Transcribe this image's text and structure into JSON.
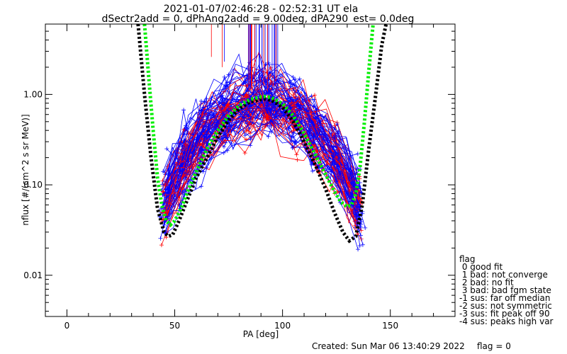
{
  "header": {
    "title_line1": "2021-01-07/02:46:28 - 02:52:31 UT ela",
    "title_line2": "dSectr2add = 0, dPhAng2add = 9.00deg, dPA290_est=    0.0deg"
  },
  "footer": {
    "created": "Created: Sun Mar 06 13:40:29 2022",
    "flag": "flag = 0"
  },
  "legend": {
    "title": "flag",
    "items": [
      " 0 good fit",
      " 1 bad: not converge",
      " 2 bad: no fit",
      " 3 bad: bad fgm state",
      "-1 sus: far off median",
      "-2 sus: not symmetric",
      "-3 sus: fit peak off 90",
      "-4 sus: peaks high var"
    ]
  },
  "colors": {
    "red": "#ff0000",
    "blue": "#0000ff",
    "green": "#00ee00",
    "black": "#000000"
  },
  "chart_data": {
    "type": "line",
    "xlabel": "PA [deg]",
    "ylabel": "nflux [#/(cm^2 s sr MeV)]",
    "xlim": [
      -10,
      180
    ],
    "ylim": [
      0.0035,
      6.0
    ],
    "ylog": true,
    "x_ticks": [
      0,
      50,
      100,
      150
    ],
    "x_tick_labels": [
      "0",
      "50",
      "100",
      "150"
    ],
    "y_ticks": [
      0.01,
      0.1,
      1.0
    ],
    "y_tick_labels": [
      "0.01",
      "0.10",
      "1.00"
    ],
    "series": [
      {
        "color": "#000000",
        "style": "dotted-thick",
        "x": [
          33,
          36,
          39,
          42,
          45,
          47,
          49,
          52,
          56,
          60,
          65,
          70,
          75,
          80,
          85,
          90,
          92,
          95,
          100,
          105,
          110,
          115,
          120,
          124,
          128,
          131,
          134,
          137,
          140,
          143,
          146,
          148
        ],
        "y": [
          6.0,
          1.0,
          0.2,
          0.055,
          0.03,
          0.027,
          0.028,
          0.04,
          0.07,
          0.12,
          0.2,
          0.34,
          0.52,
          0.7,
          0.83,
          0.88,
          0.89,
          0.86,
          0.72,
          0.5,
          0.3,
          0.17,
          0.09,
          0.05,
          0.03,
          0.024,
          0.027,
          0.06,
          0.25,
          0.9,
          3.5,
          6.0
        ]
      },
      {
        "color": "#00ee00",
        "style": "dotted-thick",
        "x": [
          36,
          38,
          40,
          42,
          44,
          46,
          48,
          50,
          53,
          56,
          60,
          65,
          70,
          75,
          80,
          85,
          90,
          92,
          95,
          100,
          105,
          110,
          115,
          120,
          124,
          127,
          130,
          132,
          134,
          136,
          138,
          140,
          142
        ],
        "y": [
          6.0,
          1.5,
          0.4,
          0.12,
          0.06,
          0.04,
          0.036,
          0.04,
          0.055,
          0.085,
          0.14,
          0.25,
          0.4,
          0.58,
          0.76,
          0.88,
          0.94,
          0.95,
          0.92,
          0.79,
          0.58,
          0.37,
          0.22,
          0.13,
          0.085,
          0.065,
          0.057,
          0.06,
          0.08,
          0.16,
          0.5,
          1.8,
          6.0
        ]
      }
    ]
  }
}
